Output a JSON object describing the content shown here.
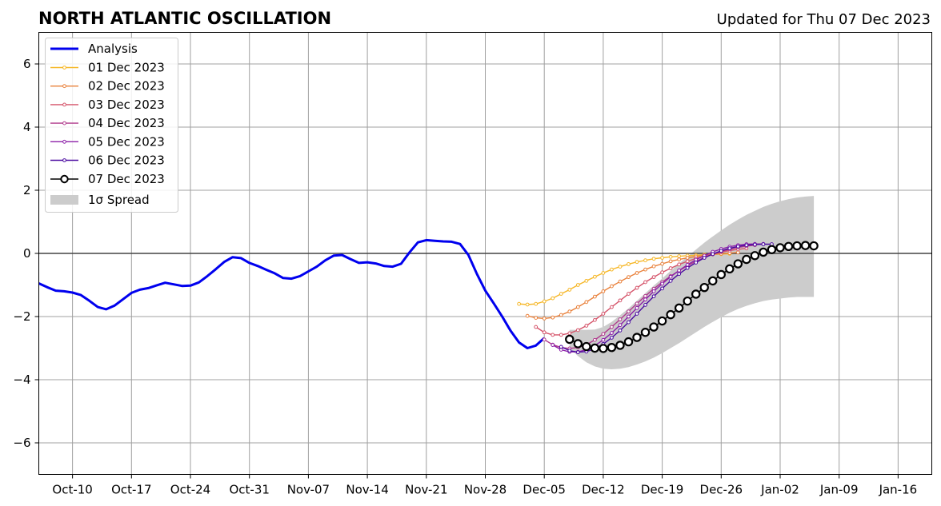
{
  "header": {
    "title": "NORTH ATLANTIC OSCILLATION",
    "updated": "Updated for Thu 07 Dec 2023"
  },
  "chart_data": {
    "type": "line",
    "x_unit": "date",
    "xlim": [
      "2023-10-06",
      "2024-01-20"
    ],
    "ylim": [
      -7,
      7
    ],
    "grid": true,
    "legend_position": "top-left",
    "x_ticks": [
      {
        "date": "2023-10-10",
        "label": "Oct-10"
      },
      {
        "date": "2023-10-17",
        "label": "Oct-17"
      },
      {
        "date": "2023-10-24",
        "label": "Oct-24"
      },
      {
        "date": "2023-10-31",
        "label": "Oct-31"
      },
      {
        "date": "2023-11-07",
        "label": "Nov-07"
      },
      {
        "date": "2023-11-14",
        "label": "Nov-14"
      },
      {
        "date": "2023-11-21",
        "label": "Nov-21"
      },
      {
        "date": "2023-11-28",
        "label": "Nov-28"
      },
      {
        "date": "2023-12-05",
        "label": "Dec-05"
      },
      {
        "date": "2023-12-12",
        "label": "Dec-12"
      },
      {
        "date": "2023-12-19",
        "label": "Dec-19"
      },
      {
        "date": "2023-12-26",
        "label": "Dec-26"
      },
      {
        "date": "2024-01-02",
        "label": "Jan-02"
      },
      {
        "date": "2024-01-09",
        "label": "Jan-09"
      },
      {
        "date": "2024-01-16",
        "label": "Jan-16"
      }
    ],
    "y_ticks": [
      {
        "value": 6,
        "label": "6"
      },
      {
        "value": 4,
        "label": "4"
      },
      {
        "value": 2,
        "label": "2"
      },
      {
        "value": 0,
        "label": "0"
      },
      {
        "value": -2,
        "label": "−2"
      },
      {
        "value": -4,
        "label": "−4"
      },
      {
        "value": -6,
        "label": "−6"
      }
    ],
    "analysis": {
      "name": "Analysis",
      "color": "#0000ee",
      "start": "2023-10-06",
      "values": [
        -0.95,
        -1.07,
        -1.18,
        -1.2,
        -1.24,
        -1.32,
        -1.5,
        -1.7,
        -1.77,
        -1.65,
        -1.45,
        -1.25,
        -1.15,
        -1.1,
        -1.01,
        -0.93,
        -0.98,
        -1.03,
        -1.02,
        -0.92,
        -0.72,
        -0.5,
        -0.27,
        -0.12,
        -0.15,
        -0.3,
        -0.4,
        -0.52,
        -0.63,
        -0.78,
        -0.8,
        -0.72,
        -0.57,
        -0.42,
        -0.22,
        -0.07,
        -0.05,
        -0.18,
        -0.3,
        -0.28,
        -0.32,
        -0.4,
        -0.42,
        -0.33,
        0.03,
        0.35,
        0.42,
        0.4,
        0.38,
        0.37,
        0.3,
        -0.05,
        -0.65,
        -1.18,
        -1.58,
        -2.0,
        -2.45,
        -2.82,
        -3.0,
        -2.92,
        -2.68
      ]
    },
    "forecasts": [
      {
        "name": "01 Dec 2023",
        "color": "#f6b727",
        "start": "2023-12-02",
        "values": [
          -1.6,
          -1.62,
          -1.6,
          -1.52,
          -1.42,
          -1.28,
          -1.15,
          -1.0,
          -0.87,
          -0.74,
          -0.62,
          -0.51,
          -0.42,
          -0.34,
          -0.27,
          -0.22,
          -0.17,
          -0.14,
          -0.11,
          -0.09,
          -0.07,
          -0.06,
          -0.04,
          -0.03,
          -0.02,
          -0.01
        ]
      },
      {
        "name": "02 Dec 2023",
        "color": "#e9803a",
        "start": "2023-12-03",
        "values": [
          -1.98,
          -2.04,
          -2.06,
          -2.03,
          -1.95,
          -1.84,
          -1.7,
          -1.54,
          -1.37,
          -1.2,
          -1.04,
          -0.89,
          -0.75,
          -0.62,
          -0.51,
          -0.41,
          -0.33,
          -0.25,
          -0.19,
          -0.14,
          -0.1,
          -0.06,
          -0.03,
          -0.01,
          0.01,
          0.03
        ]
      },
      {
        "name": "03 Dec 2023",
        "color": "#d5546a",
        "start": "2023-12-04",
        "values": [
          -2.33,
          -2.5,
          -2.58,
          -2.58,
          -2.53,
          -2.43,
          -2.29,
          -2.11,
          -1.91,
          -1.7,
          -1.49,
          -1.28,
          -1.09,
          -0.91,
          -0.75,
          -0.6,
          -0.47,
          -0.35,
          -0.25,
          -0.16,
          -0.09,
          -0.02,
          0.04,
          0.09,
          0.13,
          0.16
        ]
      },
      {
        "name": "04 Dec 2023",
        "color": "#b03a8c",
        "start": "2023-12-05",
        "values": [
          -2.73,
          -2.89,
          -2.98,
          -3.01,
          -2.98,
          -2.89,
          -2.74,
          -2.55,
          -2.33,
          -2.09,
          -1.84,
          -1.59,
          -1.35,
          -1.12,
          -0.91,
          -0.72,
          -0.55,
          -0.39,
          -0.25,
          -0.13,
          -0.03,
          0.06,
          0.13,
          0.19,
          0.23,
          0.26
        ]
      },
      {
        "name": "05 Dec 2023",
        "color": "#8c1fa8",
        "start": "2023-12-06",
        "values": [
          -2.9,
          -3.05,
          -3.12,
          -3.12,
          -3.05,
          -2.92,
          -2.74,
          -2.52,
          -2.27,
          -2.0,
          -1.73,
          -1.46,
          -1.2,
          -0.96,
          -0.74,
          -0.54,
          -0.36,
          -0.2,
          -0.07,
          0.05,
          0.14,
          0.21,
          0.26,
          0.29,
          0.3,
          0.3
        ]
      },
      {
        "name": "06 Dec 2023",
        "color": "#4a0aa0",
        "start": "2023-12-07",
        "values": [
          -2.96,
          -3.08,
          -3.13,
          -3.11,
          -3.02,
          -2.87,
          -2.67,
          -2.44,
          -2.18,
          -1.91,
          -1.63,
          -1.36,
          -1.11,
          -0.87,
          -0.65,
          -0.46,
          -0.29,
          -0.14,
          -0.02,
          0.08,
          0.16,
          0.22,
          0.26,
          0.28,
          0.29,
          0.29
        ]
      }
    ],
    "latest": {
      "name": "07 Dec 2023",
      "color": "#000000",
      "start": "2023-12-08",
      "values": [
        -2.72,
        -2.86,
        -2.95,
        -3.0,
        -3.01,
        -2.98,
        -2.91,
        -2.8,
        -2.66,
        -2.5,
        -2.33,
        -2.14,
        -1.94,
        -1.73,
        -1.51,
        -1.29,
        -1.08,
        -0.87,
        -0.67,
        -0.49,
        -0.33,
        -0.19,
        -0.07,
        0.04,
        0.12,
        0.18,
        0.22,
        0.24,
        0.25,
        0.24
      ]
    },
    "spread": {
      "name": "1σ Spread",
      "color": "#cccccc",
      "start": "2023-12-08",
      "upper": [
        -2.42,
        -2.42,
        -2.42,
        -2.41,
        -2.33,
        -2.17,
        -1.96,
        -1.74,
        -1.5,
        -1.26,
        -1.02,
        -0.79,
        -0.55,
        -0.32,
        -0.1,
        0.12,
        0.34,
        0.54,
        0.73,
        0.91,
        1.07,
        1.22,
        1.35,
        1.47,
        1.57,
        1.65,
        1.72,
        1.77,
        1.8,
        1.82
      ],
      "lower": [
        -3.0,
        -3.25,
        -3.45,
        -3.58,
        -3.65,
        -3.67,
        -3.65,
        -3.6,
        -3.52,
        -3.42,
        -3.3,
        -3.16,
        -3.0,
        -2.84,
        -2.67,
        -2.5,
        -2.33,
        -2.17,
        -2.02,
        -1.88,
        -1.76,
        -1.66,
        -1.58,
        -1.51,
        -1.46,
        -1.43,
        -1.4,
        -1.38,
        -1.38,
        -1.38
      ]
    }
  }
}
